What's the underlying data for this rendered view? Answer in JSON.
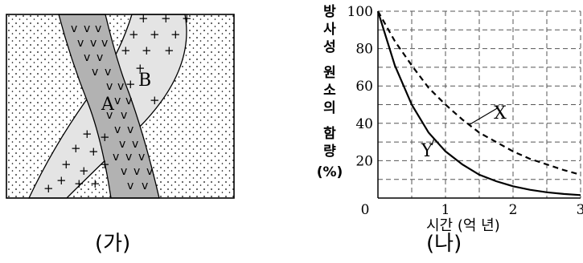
{
  "panel_a": {
    "caption": "(가)",
    "label_a": "A",
    "label_b": "B",
    "symbol_v": "v",
    "symbol_plus": "+"
  },
  "panel_b": {
    "caption": "(나)",
    "y_axis_label": [
      "방",
      "사",
      "성",
      "원",
      "소",
      "의",
      "함",
      "량",
      "(%)"
    ],
    "x_axis_label": "시간 (억 년)"
  },
  "chart_data": {
    "type": "line",
    "xlabel": "시간 (억 년)",
    "ylabel": "방사성 원소의 함량 (%)",
    "xlim": [
      0,
      3
    ],
    "ylim": [
      0,
      100
    ],
    "x_ticks": [
      "0",
      "1",
      "2",
      "3"
    ],
    "y_ticks": [
      "20",
      "40",
      "60",
      "80",
      "100"
    ],
    "grid": true,
    "series": [
      {
        "name": "X",
        "style": "dashed",
        "x": [
          0,
          0.25,
          0.5,
          0.75,
          1.0,
          1.25,
          1.5,
          1.75,
          2.0,
          2.25,
          2.5,
          2.75,
          3.0
        ],
        "y": [
          100,
          84,
          71,
          59,
          50,
          42,
          35,
          30,
          25,
          21,
          18,
          15,
          12.5
        ]
      },
      {
        "name": "Y",
        "style": "solid",
        "x": [
          0,
          0.25,
          0.5,
          0.75,
          1.0,
          1.25,
          1.5,
          1.75,
          2.0,
          2.25,
          2.5,
          2.75,
          3.0
        ],
        "y": [
          100,
          71,
          50,
          35,
          25,
          18,
          12.5,
          9,
          6.3,
          4.4,
          3.1,
          2.2,
          1.6
        ]
      }
    ]
  }
}
